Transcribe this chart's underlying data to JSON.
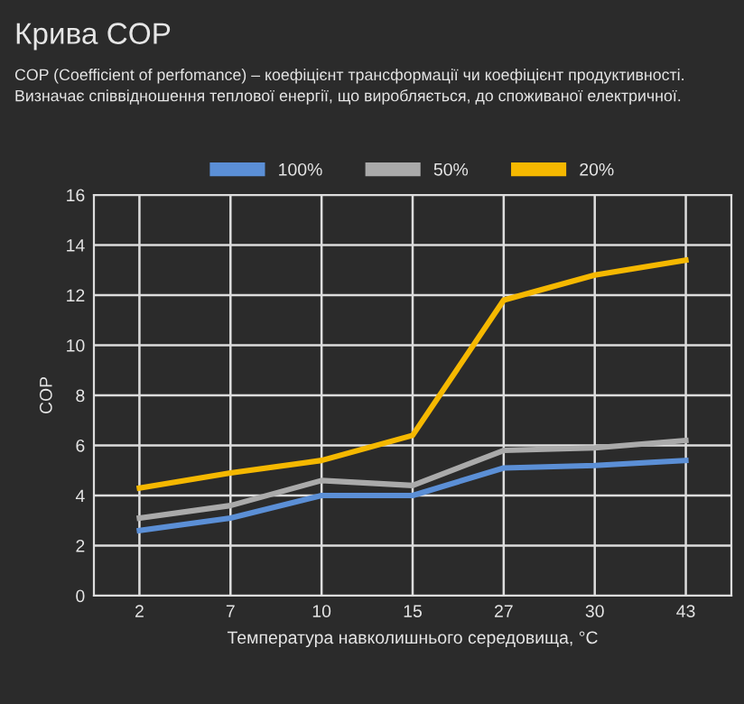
{
  "chart_data": {
    "type": "line",
    "title": "Крива COP",
    "subtitle": "COP (Coefficient of perfomance) – коефіцієнт трансформації чи коефіцієнт продуктивності.\nВизначає співвідношення теплової енергії, що виробляється, до споживаної електричної.",
    "xlabel": "Температура навколишнього середовища, °C",
    "ylabel": "COP",
    "categories": [
      "2",
      "7",
      "10",
      "15",
      "27",
      "30",
      "43"
    ],
    "series": [
      {
        "name": "100%",
        "color": "#5b8fd6",
        "values": [
          2.6,
          3.1,
          4.0,
          4.0,
          5.1,
          5.2,
          5.4
        ]
      },
      {
        "name": "50%",
        "color": "#aaaaaa",
        "values": [
          3.1,
          3.6,
          4.6,
          4.4,
          5.8,
          5.9,
          6.2
        ]
      },
      {
        "name": "20%",
        "color": "#f5b800",
        "values": [
          4.3,
          4.9,
          5.4,
          6.4,
          11.8,
          12.8,
          13.4
        ]
      }
    ],
    "ylim": [
      0,
      16
    ],
    "yticks": [
      0,
      2,
      4,
      6,
      8,
      10,
      12,
      14,
      16
    ],
    "grid": true,
    "legend": "top",
    "marker": "none",
    "line_style": "solid"
  }
}
